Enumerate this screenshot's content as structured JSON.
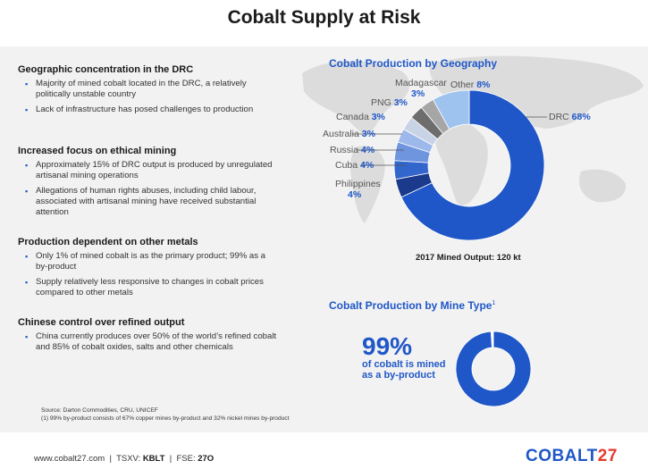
{
  "title": "Cobalt Supply at Risk",
  "sections": [
    {
      "heading": "Geographic concentration in the DRC",
      "bullets": [
        "Majority of mined cobalt located in the DRC, a relatively politically unstable country",
        "Lack of infrastructure has posed challenges to production"
      ]
    },
    {
      "heading": "Increased focus on ethical mining",
      "bullets": [
        "Approximately 15% of DRC output is produced by unregulated artisanal mining operations",
        "Allegations of human rights abuses, including child labour, associated with artisanal mining have received substantial attention"
      ]
    },
    {
      "heading": "Production dependent on other metals",
      "bullets": [
        "Only 1% of mined cobalt is as the primary product; 99% as a by-product",
        "Supply relatively less responsive to changes in cobalt prices compared to other metals"
      ]
    },
    {
      "heading": "Chinese control over refined output",
      "bullets": [
        "China currently produces over 50% of the world’s refined cobalt and 85% of cobalt oxides, salts and other chemicals"
      ]
    }
  ],
  "geo_chart": {
    "title": "Cobalt Production by Geography",
    "output_label": "2017 Mined Output: 120 kt"
  },
  "mine_chart": {
    "title": "Cobalt Production by Mine Type",
    "footnote_mark": "1",
    "big_value": "99%",
    "big_text_line1": "of cobalt is mined",
    "big_text_line2": "as a by-product"
  },
  "chart_data": [
    {
      "type": "pie",
      "title": "Cobalt Production by Geography",
      "slices": [
        {
          "label": "DRC",
          "value": 68,
          "display": "68%",
          "color": "#1f57c8"
        },
        {
          "label": "Philippines",
          "value": 4,
          "display": "4%",
          "color": "#1b3a8c"
        },
        {
          "label": "Cuba",
          "value": 4,
          "display": "4%",
          "color": "#3366cc"
        },
        {
          "label": "Russia",
          "value": 4,
          "display": "4%",
          "color": "#6f95de"
        },
        {
          "label": "Australia",
          "value": 3,
          "display": "3%",
          "color": "#9db8ea"
        },
        {
          "label": "Canada",
          "value": 3,
          "display": "3%",
          "color": "#c9d3e6"
        },
        {
          "label": "PNG",
          "value": 3,
          "display": "3%",
          "color": "#6d6d6d"
        },
        {
          "label": "Madagascar",
          "value": 3,
          "display": "3%",
          "color": "#a6a6a6"
        },
        {
          "label": "Other",
          "value": 8,
          "display": "8%",
          "color": "#9fc3ef"
        }
      ]
    },
    {
      "type": "pie",
      "title": "Cobalt Production by Mine Type",
      "slices": [
        {
          "label": "By-product",
          "value": 99,
          "color": "#1f57c8"
        },
        {
          "label": "Primary product",
          "value": 1,
          "color": "#ffffff"
        }
      ]
    }
  ],
  "sources": {
    "line1": "Source: Darton Commodities, CRU, UNICEF",
    "line2": "(1)     99% by-product consists of 67% copper mines by-product and 32% nickel mines by-product"
  },
  "footer": {
    "website": "www.cobalt27.com",
    "sep": "|",
    "tsxv_label": "TSXV:",
    "tsxv_value": "KBLT",
    "fse_label": "FSE:",
    "fse_value": "27O",
    "logo_main": "COBALT",
    "logo_num": "27"
  }
}
